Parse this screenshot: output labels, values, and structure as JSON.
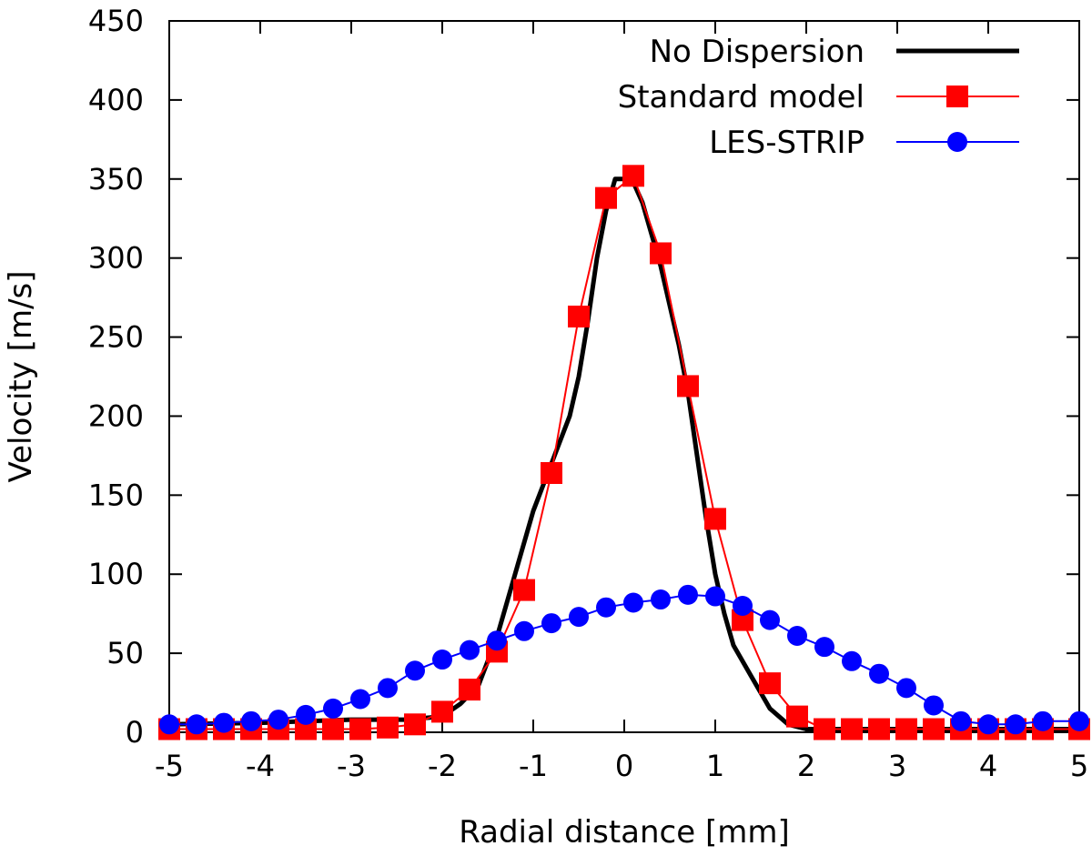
{
  "chart_data": {
    "type": "line",
    "title": "",
    "xlabel": "Radial distance [mm]",
    "ylabel": "Velocity [m/s]",
    "xlim": [
      -5,
      5
    ],
    "ylim": [
      0,
      450
    ],
    "xticks": [
      -5,
      -4,
      -3,
      -2,
      -1,
      0,
      1,
      2,
      3,
      4,
      5
    ],
    "yticks": [
      0,
      50,
      100,
      150,
      200,
      250,
      300,
      350,
      400,
      450
    ],
    "grid": false,
    "legend_position": "top-right",
    "series": [
      {
        "name": "No Dispersion",
        "color": "#000000",
        "marker": "none",
        "points": [
          [
            -5,
            5
          ],
          [
            -4,
            6
          ],
          [
            -3,
            8
          ],
          [
            -2.4,
            8
          ],
          [
            -2,
            10
          ],
          [
            -1.8,
            18
          ],
          [
            -1.6,
            30
          ],
          [
            -1.4,
            60
          ],
          [
            -1.2,
            100
          ],
          [
            -1.0,
            140
          ],
          [
            -0.8,
            170
          ],
          [
            -0.6,
            200
          ],
          [
            -0.5,
            225
          ],
          [
            -0.4,
            260
          ],
          [
            -0.3,
            300
          ],
          [
            -0.2,
            330
          ],
          [
            -0.1,
            350
          ],
          [
            0.0,
            350
          ],
          [
            0.1,
            348
          ],
          [
            0.2,
            335
          ],
          [
            0.3,
            315
          ],
          [
            0.4,
            295
          ],
          [
            0.5,
            270
          ],
          [
            0.6,
            245
          ],
          [
            0.7,
            215
          ],
          [
            0.8,
            175
          ],
          [
            0.9,
            135
          ],
          [
            1.0,
            100
          ],
          [
            1.1,
            75
          ],
          [
            1.2,
            55
          ],
          [
            1.4,
            35
          ],
          [
            1.6,
            15
          ],
          [
            1.8,
            5
          ],
          [
            2.0,
            2
          ],
          [
            2.5,
            2
          ],
          [
            3,
            2
          ],
          [
            4,
            2
          ],
          [
            5,
            2
          ]
        ]
      },
      {
        "name": "Standard model",
        "color": "#ff0000",
        "marker": "square",
        "points": [
          [
            -5,
            2
          ],
          [
            -4.7,
            2
          ],
          [
            -4.4,
            2
          ],
          [
            -4.1,
            2
          ],
          [
            -3.8,
            2
          ],
          [
            -3.5,
            2
          ],
          [
            -3.2,
            2
          ],
          [
            -2.9,
            2
          ],
          [
            -2.6,
            3
          ],
          [
            -2.3,
            5
          ],
          [
            -2.0,
            13
          ],
          [
            -1.7,
            27
          ],
          [
            -1.4,
            51
          ],
          [
            -1.1,
            90
          ],
          [
            -0.8,
            164
          ],
          [
            -0.5,
            263
          ],
          [
            -0.2,
            338
          ],
          [
            0.1,
            352
          ],
          [
            0.4,
            303
          ],
          [
            0.7,
            219
          ],
          [
            1.0,
            135
          ],
          [
            1.3,
            71
          ],
          [
            1.6,
            31
          ],
          [
            1.9,
            10
          ],
          [
            2.2,
            2
          ],
          [
            2.5,
            2
          ],
          [
            2.8,
            2
          ],
          [
            3.1,
            2
          ],
          [
            3.4,
            2
          ],
          [
            3.7,
            2
          ],
          [
            4.0,
            2
          ],
          [
            4.3,
            2
          ],
          [
            4.6,
            2
          ],
          [
            5.0,
            2
          ]
        ]
      },
      {
        "name": "LES-STRIP",
        "color": "#0000ff",
        "marker": "circle",
        "points": [
          [
            -5,
            5
          ],
          [
            -4.7,
            5
          ],
          [
            -4.4,
            6
          ],
          [
            -4.1,
            7
          ],
          [
            -3.8,
            8
          ],
          [
            -3.5,
            11
          ],
          [
            -3.2,
            15
          ],
          [
            -2.9,
            21
          ],
          [
            -2.6,
            28
          ],
          [
            -2.3,
            39
          ],
          [
            -2.0,
            46
          ],
          [
            -1.7,
            52
          ],
          [
            -1.4,
            58
          ],
          [
            -1.1,
            64
          ],
          [
            -0.8,
            69
          ],
          [
            -0.5,
            73
          ],
          [
            -0.2,
            79
          ],
          [
            0.1,
            82
          ],
          [
            0.4,
            84
          ],
          [
            0.7,
            87
          ],
          [
            1.0,
            86
          ],
          [
            1.3,
            80
          ],
          [
            1.6,
            71
          ],
          [
            1.9,
            61
          ],
          [
            2.2,
            54
          ],
          [
            2.5,
            45
          ],
          [
            2.8,
            37
          ],
          [
            3.1,
            28
          ],
          [
            3.4,
            17
          ],
          [
            3.7,
            7
          ],
          [
            4.0,
            5
          ],
          [
            4.3,
            5
          ],
          [
            4.6,
            7
          ],
          [
            5.0,
            7
          ]
        ]
      }
    ]
  }
}
